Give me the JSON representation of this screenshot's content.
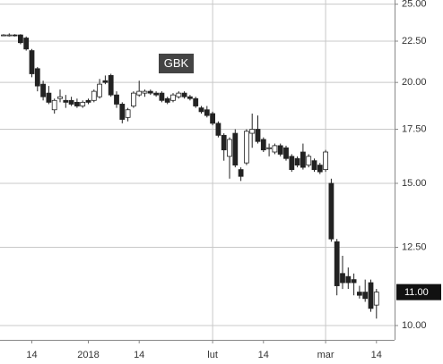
{
  "chart_data": {
    "type": "candlestick",
    "title": "GBK",
    "categories": [
      null,
      null,
      null,
      null,
      null,
      "14",
      null,
      null,
      null,
      null,
      null,
      null,
      null,
      null,
      null,
      "2018",
      null,
      null,
      null,
      null,
      null,
      null,
      null,
      null,
      "14",
      null,
      null,
      null,
      null,
      null,
      null,
      null,
      null,
      null,
      null,
      null,
      null,
      "lut",
      null,
      null,
      null,
      null,
      null,
      null,
      null,
      null,
      "14",
      null,
      null,
      null,
      null,
      null,
      null,
      null,
      null,
      null,
      null,
      "mar",
      null,
      null,
      null,
      null,
      null,
      null,
      null,
      null,
      "14"
    ],
    "open": [
      22.9,
      22.85,
      22.9,
      22.9,
      22.7,
      21.9,
      20.8,
      19.9,
      19.4,
      18.5,
      19.1,
      19.0,
      19.0,
      18.9,
      18.7,
      19.0,
      19.0,
      19.2,
      20.1,
      20.4,
      19.3,
      18.8,
      18.1,
      18.7,
      19.3,
      19.4,
      19.5,
      19.4,
      19.4,
      19.1,
      19.0,
      19.2,
      19.4,
      19.2,
      19.1,
      18.6,
      18.5,
      18.3,
      17.8,
      17.2,
      16.2,
      17.3,
      15.6,
      15.9,
      17.3,
      17.5,
      17.0,
      16.6,
      16.4,
      16.7,
      16.6,
      16.2,
      16.1,
      16.4,
      15.8,
      16.0,
      15.8,
      15.6,
      15.0,
      12.7,
      11.6,
      11.5,
      11.4,
      11.0,
      11.0,
      11.3,
      10.6
    ],
    "high": [
      22.95,
      23.0,
      22.95,
      22.95,
      22.8,
      22.0,
      20.9,
      20.1,
      19.8,
      19.1,
      19.6,
      19.3,
      19.2,
      19.1,
      19.0,
      19.1,
      19.6,
      20.2,
      20.4,
      20.5,
      19.5,
      18.9,
      18.6,
      19.5,
      20.1,
      19.6,
      19.6,
      19.5,
      19.5,
      19.2,
      19.4,
      19.5,
      19.5,
      19.3,
      19.2,
      18.7,
      18.7,
      18.4,
      17.9,
      17.3,
      17.1,
      17.5,
      15.7,
      17.5,
      18.3,
      18.2,
      17.1,
      16.8,
      16.8,
      16.8,
      16.7,
      16.3,
      16.2,
      16.8,
      16.3,
      16.1,
      15.9,
      16.5,
      15.2,
      12.8,
      12.2,
      11.8,
      11.6,
      11.2,
      11.4,
      11.4,
      11.1
    ],
    "low": [
      22.85,
      22.8,
      22.8,
      22.3,
      21.9,
      20.3,
      19.5,
      19.0,
      18.8,
      18.3,
      18.9,
      18.6,
      18.7,
      18.6,
      18.6,
      18.8,
      18.9,
      19.1,
      19.9,
      19.2,
      18.6,
      17.8,
      17.9,
      18.6,
      19.2,
      19.2,
      19.3,
      19.2,
      18.9,
      18.8,
      18.9,
      19.1,
      19.1,
      19.0,
      18.6,
      18.3,
      18.1,
      17.7,
      17.1,
      16.0,
      15.2,
      15.7,
      15.1,
      15.8,
      16.6,
      16.8,
      16.4,
      16.2,
      16.3,
      16.2,
      16.0,
      15.5,
      15.7,
      15.6,
      15.7,
      15.5,
      15.4,
      15.5,
      12.7,
      10.9,
      11.1,
      11.1,
      10.9,
      10.8,
      10.7,
      10.4,
      10.2
    ],
    "close": [
      22.9,
      22.9,
      22.85,
      22.4,
      22.0,
      20.5,
      19.8,
      19.2,
      18.9,
      19.0,
      19.2,
      18.9,
      18.8,
      18.7,
      18.9,
      18.9,
      19.5,
      19.9,
      20.0,
      19.3,
      18.8,
      18.0,
      18.5,
      19.4,
      19.5,
      19.5,
      19.4,
      19.3,
      19.0,
      18.9,
      19.3,
      19.4,
      19.2,
      19.1,
      18.7,
      18.4,
      18.2,
      17.8,
      17.2,
      16.5,
      17.0,
      15.8,
      15.3,
      17.4,
      17.5,
      16.9,
      16.5,
      16.6,
      16.7,
      16.3,
      16.1,
      15.6,
      15.8,
      15.7,
      16.2,
      15.6,
      15.5,
      16.4,
      12.8,
      11.2,
      11.3,
      11.3,
      11.3,
      10.9,
      10.8,
      10.5,
      11.0
    ],
    "up_color": "#ffffff",
    "down_color": "#222222",
    "ylim": [
      9.6,
      25.3
    ],
    "log_scale": true,
    "yticks": [
      {
        "value": 10,
        "label": "10.00"
      },
      {
        "value": 12.5,
        "label": "12.50"
      },
      {
        "value": 15,
        "label": "15.00"
      },
      {
        "value": 17.5,
        "label": "17.50"
      },
      {
        "value": 20,
        "label": "20.00"
      },
      {
        "value": 22.5,
        "label": "22.50"
      },
      {
        "value": 25,
        "label": "25.00"
      }
    ],
    "grid": true,
    "last": {
      "value": 11.0,
      "label": "11.00"
    }
  }
}
